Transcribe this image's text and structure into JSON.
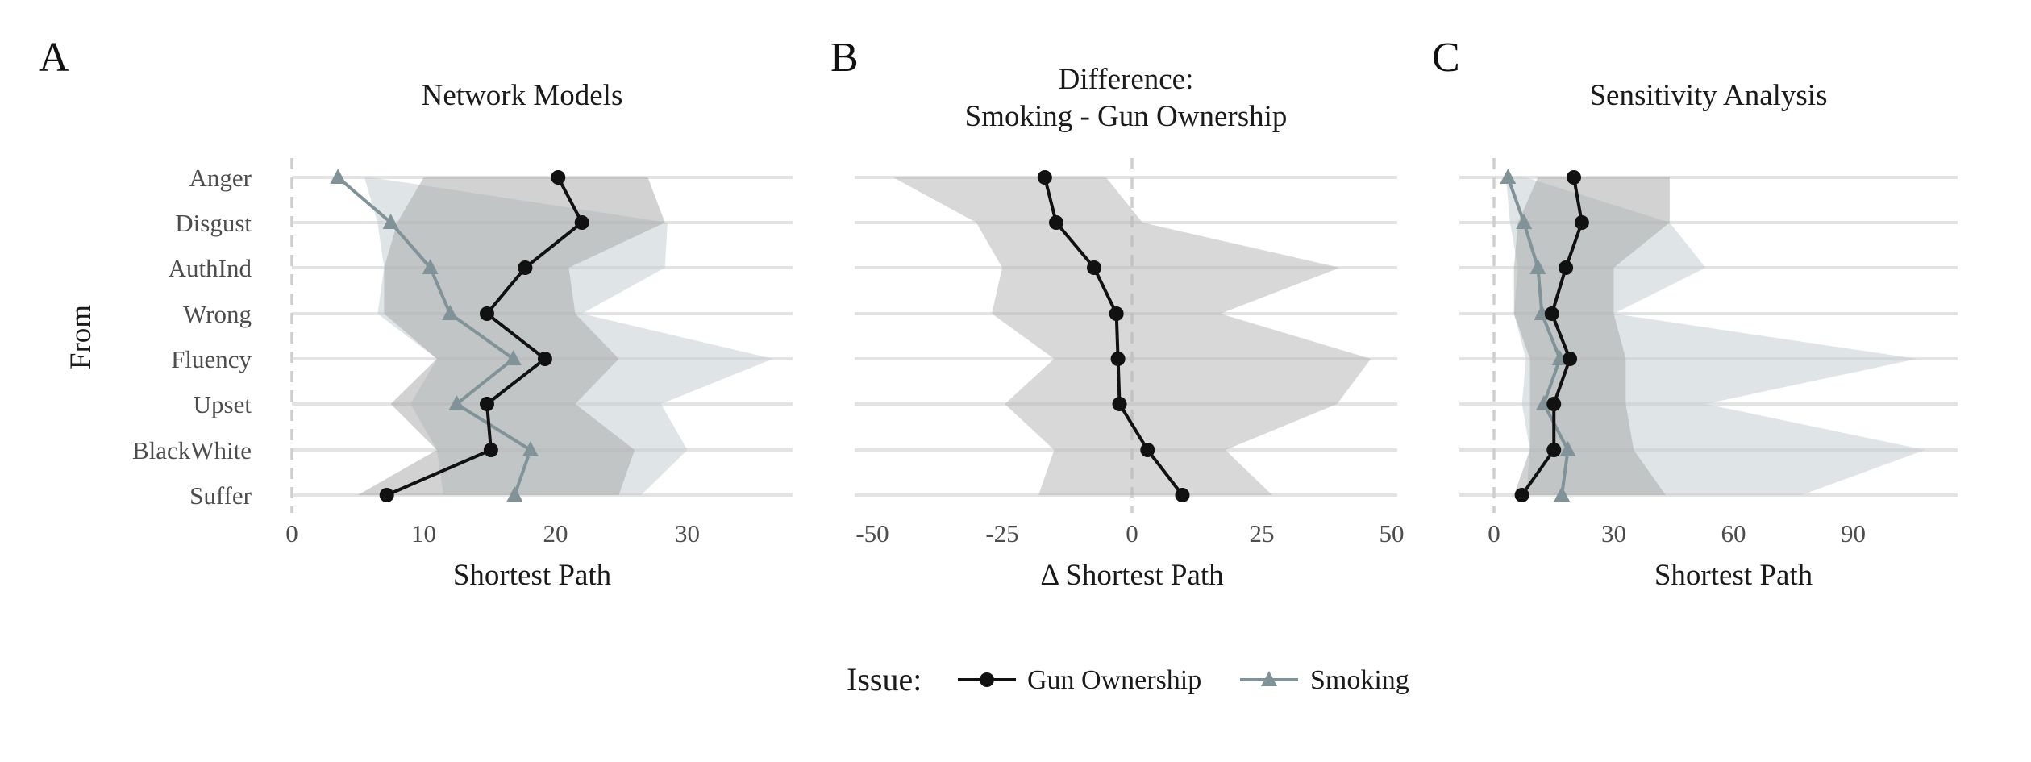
{
  "colors": {
    "gun": "#111111",
    "smoking": "#7f9399",
    "band_gun": "#a6a6a6",
    "band_smoking": "#c5ced4",
    "band_diff": "#b8b8b8",
    "grid": "#e3e3e3",
    "zero": "#cfcfcf"
  },
  "y_axis_label": "From",
  "legend": {
    "title": "Issue:",
    "items": [
      {
        "label": "Gun Ownership",
        "marker": "circle",
        "color": "#111111"
      },
      {
        "label": "Smoking",
        "marker": "triangle",
        "color": "#7f9399"
      }
    ]
  },
  "chart_data": [
    {
      "type": "line",
      "panel": "A",
      "title": "Network Models",
      "xlabel": "Shortest Path",
      "ylabel": "From",
      "xlim": [
        0,
        38
      ],
      "xticks": [
        0,
        10,
        20,
        30
      ],
      "categories": [
        "Anger",
        "Disgust",
        "AuthInd",
        "Wrong",
        "Fluency",
        "Upset",
        "BlackWhite",
        "Suffer"
      ],
      "series": [
        {
          "name": "Gun Ownership",
          "marker": "circle",
          "values": [
            20.2,
            22.0,
            17.7,
            14.8,
            19.2,
            14.8,
            15.1,
            7.2
          ],
          "lower": [
            10,
            8,
            7,
            7,
            11,
            7.5,
            11,
            5
          ],
          "upper": [
            27,
            28.3,
            21,
            21.5,
            24.8,
            21.5,
            26,
            24.8
          ]
        },
        {
          "name": "Smoking",
          "marker": "triangle",
          "values": [
            3.5,
            7.5,
            10.5,
            12,
            16.8,
            12.5,
            18.1,
            16.9
          ],
          "lower": [
            5.5,
            6.5,
            7,
            6.5,
            11,
            9,
            11,
            11.5
          ],
          "upper": [
            6,
            28.5,
            28.3,
            22,
            36.5,
            28,
            30,
            26.5
          ]
        }
      ]
    },
    {
      "type": "line",
      "panel": "B",
      "title": "Difference:\nSmoking - Gun Ownership",
      "xlabel": "Δ Shortest Path",
      "xlim": [
        -50,
        50
      ],
      "xticks": [
        -50,
        -25,
        0,
        25,
        50
      ],
      "xticklabels": [
        "-50",
        "-25",
        "0",
        "25",
        "50"
      ],
      "categories": [
        "Anger",
        "Disgust",
        "AuthInd",
        "Wrong",
        "Fluency",
        "Upset",
        "BlackWhite",
        "Suffer"
      ],
      "series": [
        {
          "name": "Smoking - Gun Ownership",
          "marker": "circle",
          "values": [
            -16.8,
            -14.6,
            -7.3,
            -3,
            -2.7,
            -2.4,
            3,
            9.7
          ],
          "lower": [
            -46,
            -30,
            -25,
            -27,
            -15,
            -24.5,
            -15,
            -18
          ],
          "upper": [
            -5,
            2,
            40,
            17,
            46,
            39.5,
            18,
            27
          ]
        }
      ]
    },
    {
      "type": "line",
      "panel": "C",
      "title": "Sensitivity Analysis",
      "xlabel": "Shortest Path",
      "xlim": [
        0,
        110
      ],
      "xticks": [
        0,
        30,
        60,
        90
      ],
      "categories": [
        "Anger",
        "Disgust",
        "AuthInd",
        "Wrong",
        "Fluency",
        "Upset",
        "BlackWhite",
        "Suffer"
      ],
      "series": [
        {
          "name": "Gun Ownership",
          "marker": "circle",
          "values": [
            20,
            22,
            18,
            14.5,
            19,
            15,
            15,
            7
          ],
          "lower": [
            11,
            6,
            5,
            5,
            9,
            9,
            9,
            5
          ],
          "upper": [
            44,
            44,
            30,
            30,
            33,
            33,
            35,
            43
          ]
        },
        {
          "name": "Smoking",
          "marker": "triangle",
          "values": [
            3.5,
            7.5,
            11,
            12,
            16.5,
            12.5,
            18.5,
            17
          ],
          "lower": [
            3,
            4,
            6,
            5,
            8,
            7,
            9,
            8
          ],
          "upper": [
            8,
            44,
            53,
            30,
            106,
            53,
            108,
            77
          ]
        }
      ]
    }
  ]
}
